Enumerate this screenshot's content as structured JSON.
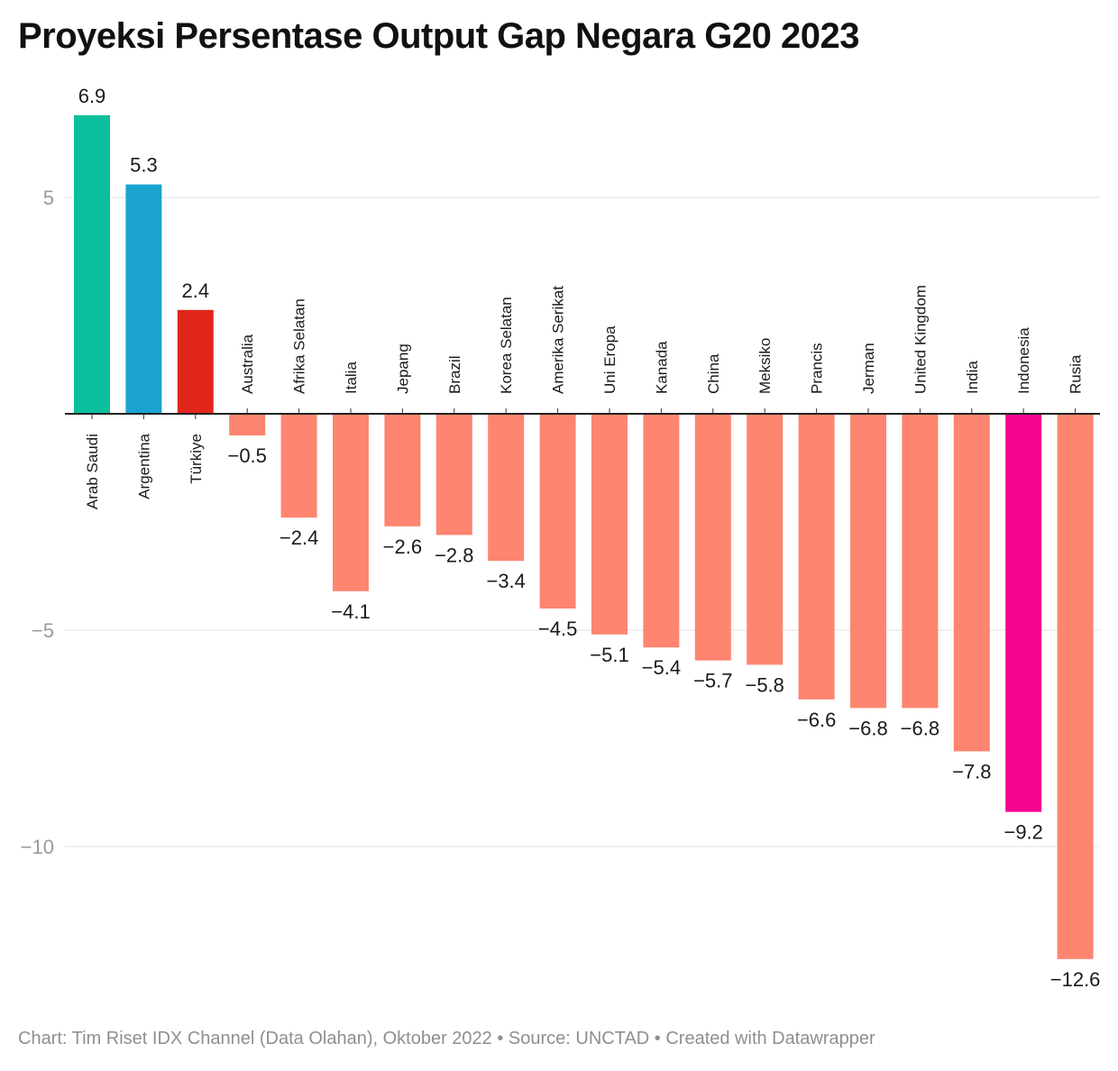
{
  "chart_data": {
    "type": "bar",
    "title": "Proyeksi Persentase Output Gap Negara G20 2023",
    "categories": [
      "Arab Saudi",
      "Argentina",
      "Türkiye",
      "Australia",
      "Afrika Selatan",
      "Italia",
      "Jepang",
      "Brazil",
      "Korea Selatan",
      "Amerika Serikat",
      "Uni Eropa",
      "Kanada",
      "China",
      "Meksiko",
      "Prancis",
      "Jerman",
      "United Kingdom",
      "India",
      "Indonesia",
      "Rusia"
    ],
    "values": [
      6.9,
      5.3,
      2.4,
      -0.5,
      -2.4,
      -4.1,
      -2.6,
      -2.8,
      -3.4,
      -4.5,
      -5.1,
      -5.4,
      -5.7,
      -5.8,
      -6.6,
      -6.8,
      -6.8,
      -7.8,
      -9.2,
      -12.6
    ],
    "value_labels": [
      "6.9",
      "5.3",
      "2.4",
      "−0.5",
      "−2.4",
      "−4.1",
      "−2.6",
      "−2.8",
      "−3.4",
      "−4.5",
      "−5.1",
      "−5.4",
      "−5.7",
      "−5.8",
      "−6.6",
      "−6.8",
      "−6.8",
      "−7.8",
      "−9.2",
      "−12.6"
    ],
    "colors": [
      "#0bbf9e",
      "#1ba3cf",
      "#e3261b",
      "#fe8570",
      "#fe8570",
      "#fe8570",
      "#fe8570",
      "#fe8570",
      "#fe8570",
      "#fe8570",
      "#fe8570",
      "#fe8570",
      "#fe8570",
      "#fe8570",
      "#fe8570",
      "#fe8570",
      "#fe8570",
      "#fe8570",
      "#f5058d",
      "#fe8570"
    ],
    "y_ticks": [
      5,
      -5,
      -10
    ],
    "y_tick_labels": [
      "5",
      "−5",
      "−10"
    ],
    "ylim": [
      -12.6,
      6.9
    ],
    "grid": true,
    "xlabel": "",
    "ylabel": ""
  },
  "footer": "Chart: Tim Riset IDX Channel (Data Olahan), Oktober 2022 • Source: UNCTAD • Created with Datawrapper"
}
